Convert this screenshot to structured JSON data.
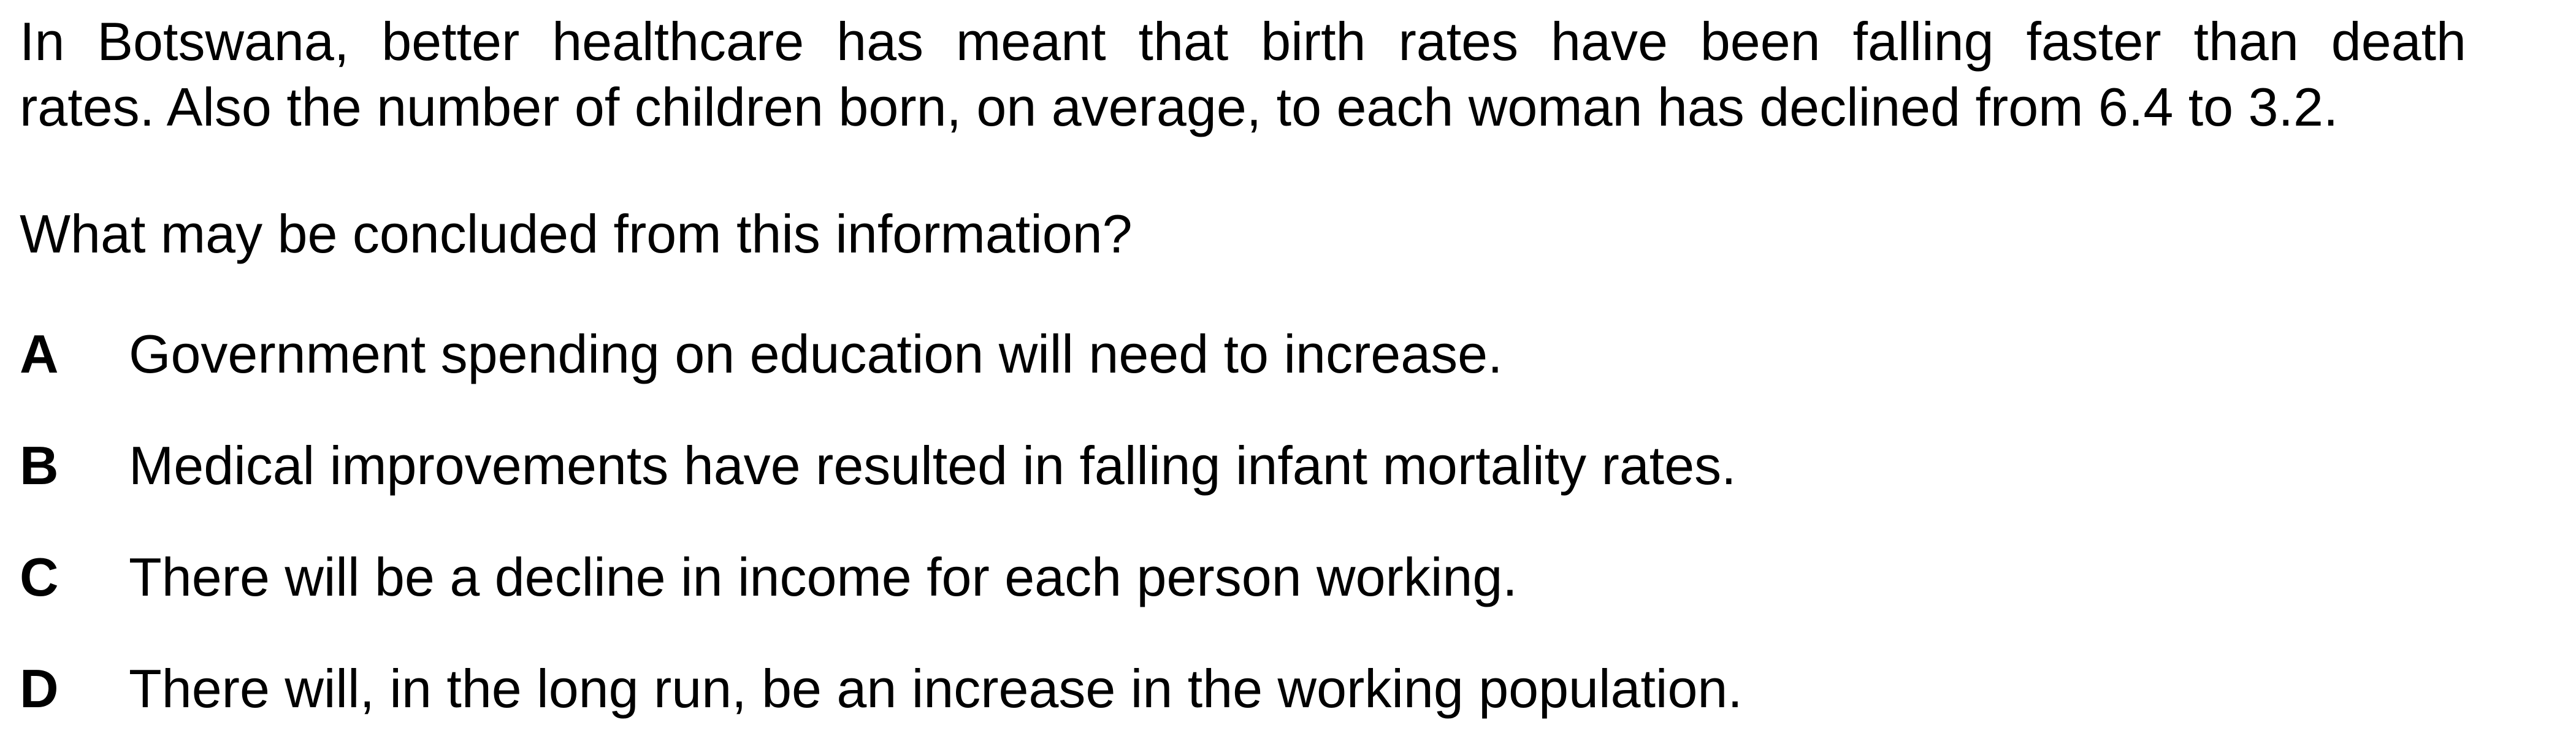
{
  "stem": {
    "line1": "In Botswana, better healthcare has meant that birth rates have been falling faster than death",
    "line2": "rates. Also the number of children born, on average, to each woman has declined from 6.4 to 3.2."
  },
  "question": "What may be concluded from this information?",
  "options": [
    {
      "letter": "A",
      "text": "Government spending on education will need to increase."
    },
    {
      "letter": "B",
      "text": "Medical improvements have resulted in falling infant mortality rates."
    },
    {
      "letter": "C",
      "text": "There will be a decline in income for each person working."
    },
    {
      "letter": "D",
      "text": "There will, in the long run, be an increase in the working population."
    }
  ]
}
